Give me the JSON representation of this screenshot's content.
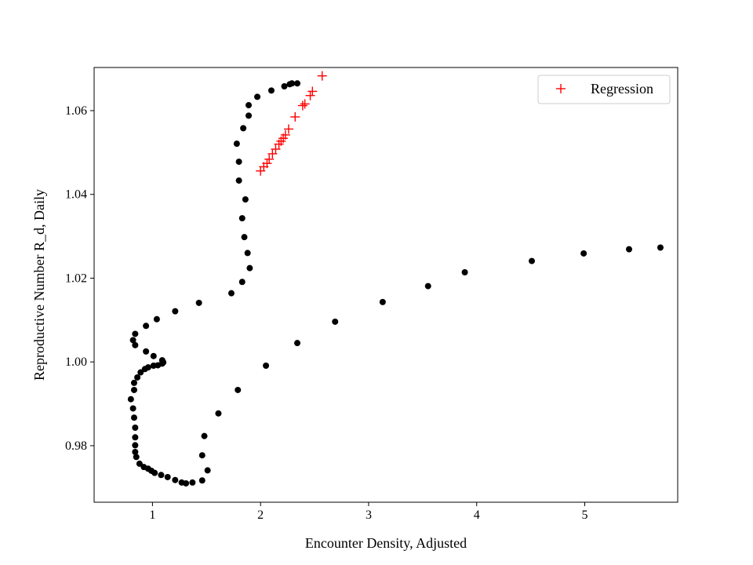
{
  "chart_data": {
    "type": "scatter",
    "xlabel": "Encounter Density, Adjusted",
    "ylabel": "Reproductive Number R_d, Daily",
    "xlim": [
      0.46,
      5.86
    ],
    "ylim": [
      0.9665,
      1.0703
    ],
    "x_ticks": [
      1,
      2,
      3,
      4,
      5
    ],
    "y_ticks": [
      0.98,
      1.0,
      1.02,
      1.04,
      1.06
    ],
    "y_tick_labels": [
      "0.98",
      "1.00",
      "1.02",
      "1.04",
      "1.06"
    ],
    "grid": false,
    "legend": {
      "position": "top-right",
      "entries": [
        "Regression"
      ]
    },
    "series": [
      {
        "marker": "dot",
        "color": "#000000",
        "x": [
          5.7,
          5.41,
          4.99,
          4.51,
          3.89,
          3.55,
          3.13,
          2.69,
          2.34,
          2.05,
          1.79,
          1.61,
          1.48,
          1.46,
          1.51,
          1.46,
          1.37,
          1.31,
          1.27,
          1.21,
          1.14,
          1.08,
          1.02,
          0.99,
          0.96,
          0.92,
          0.88,
          0.85,
          0.84,
          0.84,
          0.84,
          0.84,
          0.83,
          0.82,
          0.8,
          0.83,
          0.83,
          0.86,
          0.89,
          0.93,
          0.96,
          1.01,
          1.05,
          1.09,
          1.1,
          1.09,
          1.01,
          0.94,
          0.84,
          0.82,
          0.84,
          0.94,
          1.04,
          1.21,
          1.43,
          1.73,
          1.83,
          1.9,
          1.88,
          1.85,
          1.83,
          1.86,
          1.8,
          1.8,
          1.78,
          1.84,
          1.89,
          1.89,
          1.97,
          2.1,
          2.22,
          2.27,
          2.29,
          2.34
        ],
        "y": [
          1.0273,
          1.0269,
          1.0259,
          1.0241,
          1.0214,
          1.0181,
          1.0143,
          1.0096,
          1.0045,
          0.9991,
          0.9933,
          0.9877,
          0.9823,
          0.9777,
          0.9741,
          0.9717,
          0.9712,
          0.971,
          0.9712,
          0.9718,
          0.9725,
          0.973,
          0.9735,
          0.974,
          0.9745,
          0.9749,
          0.9757,
          0.9773,
          0.9785,
          0.9801,
          0.982,
          0.9843,
          0.9867,
          0.9889,
          0.9911,
          0.9933,
          0.995,
          0.9963,
          0.9975,
          0.9983,
          0.9987,
          0.9991,
          0.9992,
          0.9996,
          0.9999,
          1.0004,
          1.0014,
          1.0025,
          1.004,
          1.0052,
          1.0067,
          1.0086,
          1.0102,
          1.0121,
          1.0141,
          1.0164,
          1.0191,
          1.0224,
          1.026,
          1.0298,
          1.0343,
          1.0388,
          1.0433,
          1.0478,
          1.0521,
          1.0558,
          1.0588,
          1.0613,
          1.0633,
          1.0648,
          1.0658,
          1.0663,
          1.0665,
          1.0665
        ]
      },
      {
        "name": "Regression",
        "marker": "plus",
        "color": "#ff0000",
        "x": [
          2.0,
          2.03,
          2.06,
          2.08,
          2.11,
          2.14,
          2.17,
          2.19,
          2.21,
          2.23,
          2.26,
          2.32,
          2.39,
          2.41,
          2.46,
          2.48,
          2.57
        ],
        "y": [
          1.0456,
          1.0466,
          1.0474,
          1.0484,
          1.0497,
          1.0508,
          1.052,
          1.0527,
          1.0534,
          1.0542,
          1.0556,
          1.0585,
          1.0612,
          1.0616,
          1.0636,
          1.0646,
          1.0683
        ]
      }
    ]
  }
}
